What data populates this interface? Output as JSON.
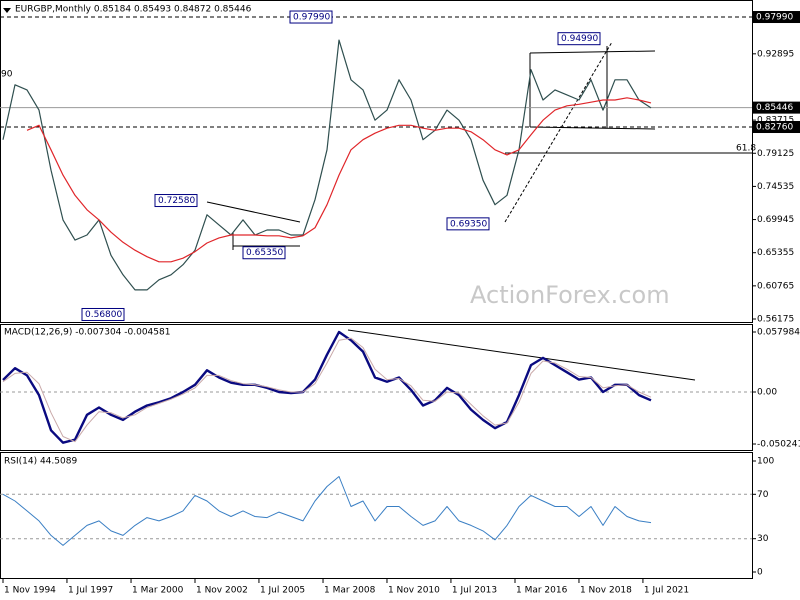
{
  "chart_data": [
    {
      "type": "line",
      "title": "EURGBP,Monthly 0.85184 0.85493 0.84872 0.85446",
      "watermark": "ActionForex.com",
      "xlim": [
        -0.25,
        62.42
      ],
      "ylim": [
        0.5576,
        1.0007
      ],
      "yticks": [
        0.56175,
        0.60765,
        0.65355,
        0.69945,
        0.74535,
        0.79125,
        0.83715,
        0.92895
      ],
      "grid": false,
      "price_labels": [
        {
          "value": 0.9799,
          "label": "0.97990"
        },
        0.85446,
        {
          "value": 0.8276,
          "label": "0.82760"
        }
      ],
      "annotations": [
        {
          "value": 0.9799,
          "label": "0.97990"
        },
        {
          "value": 0.9499,
          "label": "0.94990"
        },
        {
          "value": 0.7258,
          "label": "0.72580"
        },
        {
          "value": 0.6535,
          "label": "0.65350"
        },
        {
          "value": 0.6935,
          "label": "0.69350"
        },
        {
          "value": 0.568,
          "label": "0.56800"
        }
      ],
      "edge_label": "90",
      "fib_label": 61.8,
      "series": [
        {
          "color": "#2f4f4f",
          "values": [
            0.81,
            0.886,
            0.879,
            0.851,
            0.768,
            0.699,
            0.671,
            0.678,
            0.699,
            0.65,
            0.623,
            0.602,
            0.602,
            0.616,
            0.623,
            0.637,
            0.657,
            0.706,
            0.692,
            0.678,
            0.699,
            0.678,
            0.685,
            0.685,
            0.678,
            0.678,
            0.727,
            0.796,
            0.948,
            0.893,
            0.879,
            0.837,
            0.851,
            0.893,
            0.865,
            0.81,
            0.823,
            0.851,
            0.837,
            0.81,
            0.754,
            0.72,
            0.733,
            0.796,
            0.907,
            0.865,
            0.879,
            0.872,
            0.865,
            0.893,
            0.851,
            0.893,
            0.893,
            0.865,
            0.854
          ]
        },
        {
          "color": "#e0262a",
          "values": [
            null,
            null,
            0.823,
            0.83,
            0.796,
            0.761,
            0.733,
            0.713,
            0.699,
            0.682,
            0.668,
            0.657,
            0.648,
            0.641,
            0.641,
            0.646,
            0.655,
            0.667,
            0.674,
            0.678,
            0.678,
            0.678,
            0.677,
            0.677,
            0.674,
            0.677,
            0.688,
            0.72,
            0.761,
            0.796,
            0.81,
            0.819,
            0.826,
            0.83,
            0.83,
            0.826,
            0.823,
            0.826,
            0.826,
            0.821,
            0.81,
            0.796,
            0.789,
            0.796,
            0.817,
            0.837,
            0.851,
            0.857,
            0.859,
            0.862,
            0.865,
            0.865,
            0.868,
            0.865,
            0.861
          ]
        }
      ]
    },
    {
      "type": "line",
      "title": "MACD(12,26,9) -0.007304 -0.004581",
      "xlim": [
        -0.25,
        62.42
      ],
      "ylim": [
        -0.05605,
        0.06475
      ],
      "yticks": [
        -0.050241,
        {
          "value": 0,
          "label": "0.00"
        },
        0.057984
      ],
      "levels": [
        0
      ],
      "series": [
        {
          "color": "#0a0a80",
          "width": 2.4,
          "values": [
            0.0116,
            0.023,
            0.016,
            -0.003,
            -0.037,
            -0.049,
            -0.046,
            -0.022,
            -0.015,
            -0.022,
            -0.027,
            -0.019,
            -0.013,
            -0.01,
            -0.006,
            0,
            0.007,
            0.021,
            0.014,
            0.009,
            0.007,
            0.007,
            0.004,
            0,
            -0.001,
            0,
            0.012,
            0.036,
            0.058,
            0.05,
            0.039,
            0.014,
            0.01,
            0.014,
            0.002,
            -0.013,
            -0.008,
            0.004,
            -0.003,
            -0.017,
            -0.027,
            -0.035,
            -0.029,
            -0.003,
            0.026,
            0.033,
            0.026,
            0.019,
            0.012,
            0.014,
            0,
            0.007,
            0.007,
            -0.003,
            -0.008
          ]
        },
        {
          "color": "#c9a9a9",
          "width": 1,
          "values": [
            0.01,
            0.018,
            0.019,
            0.008,
            -0.02,
            -0.043,
            -0.048,
            -0.032,
            -0.019,
            -0.02,
            -0.025,
            -0.022,
            -0.015,
            -0.011,
            -0.007,
            -0.002,
            0.004,
            0.016,
            0.016,
            0.011,
            0.008,
            0.007,
            0.005,
            0.002,
            0,
            0,
            0.008,
            0.028,
            0.05,
            0.052,
            0.043,
            0.022,
            0.012,
            0.013,
            0.006,
            -0.008,
            -0.009,
            0,
            -0.001,
            -0.012,
            -0.023,
            -0.032,
            -0.03,
            -0.01,
            0.018,
            0.03,
            0.028,
            0.022,
            0.015,
            0.014,
            0.004,
            0.006,
            0.007,
            0,
            -0.005
          ]
        }
      ]
    },
    {
      "type": "line",
      "title": "RSI(14) 44.5089",
      "xlim": [
        -0.25,
        62.42
      ],
      "ylim": [
        -5.4,
        107.2
      ],
      "yticks": [
        0,
        30,
        70,
        100
      ],
      "levels": [
        30,
        70
      ],
      "xticks": [
        {
          "value": 0,
          "label": "1 Nov 1994"
        },
        {
          "value": 5.33,
          "label": "1 Jul 1997"
        },
        {
          "value": 10.67,
          "label": "1 Mar 2000"
        },
        {
          "value": 16,
          "label": "1 Nov 2002"
        },
        {
          "value": 21.33,
          "label": "1 Jul 2005"
        },
        {
          "value": 26.67,
          "label": "1 Mar 2008"
        },
        {
          "value": 32,
          "label": "1 Nov 2010"
        },
        {
          "value": 37.33,
          "label": "1 Jul 2013"
        },
        {
          "value": 42.67,
          "label": "1 Mar 2016"
        },
        {
          "value": 48,
          "label": "1 Nov 2018"
        },
        {
          "value": 53.33,
          "label": "1 Jul 2021"
        }
      ],
      "series": [
        {
          "color": "#3a7fc4",
          "width": 1,
          "values": [
            70,
            64,
            55,
            46,
            33,
            24,
            33,
            42,
            46,
            37,
            33,
            42,
            49,
            46,
            50,
            55,
            69,
            64,
            55,
            50,
            55,
            50,
            49,
            54,
            50,
            46,
            64,
            77,
            86,
            59,
            64,
            46,
            59,
            59,
            50,
            42,
            46,
            59,
            46,
            42,
            37,
            29,
            42,
            59,
            69,
            64,
            59,
            59,
            50,
            59,
            42,
            59,
            50,
            46,
            44.5
          ]
        }
      ]
    }
  ]
}
